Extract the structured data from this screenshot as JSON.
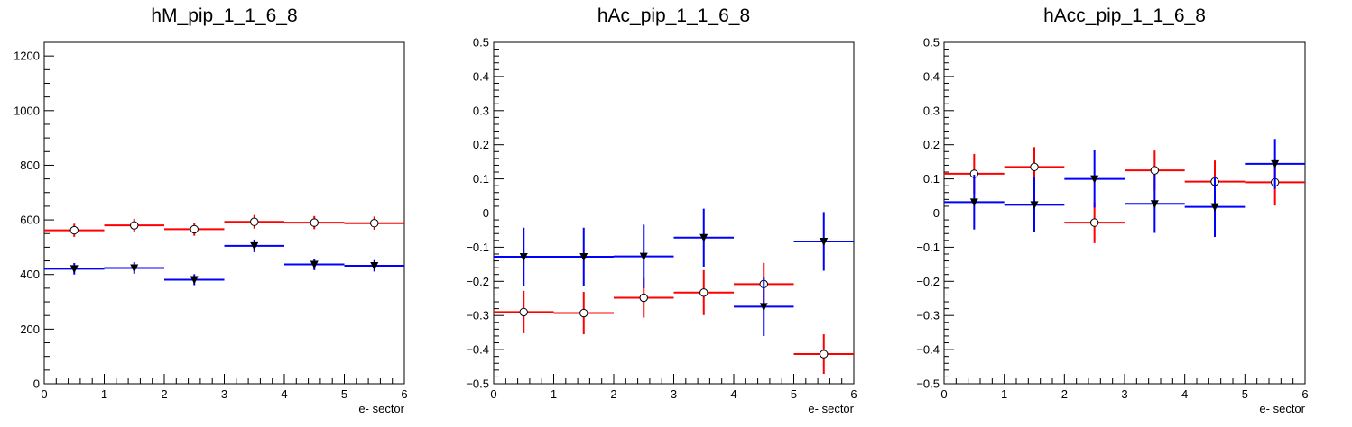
{
  "chart_data": [
    {
      "type": "scatter",
      "title": "hM_pip_1_1_6_8",
      "xlabel": "e- sector",
      "ylabel": "",
      "xlim": [
        0,
        6
      ],
      "ylim": [
        0,
        1250
      ],
      "xticks": [
        "0",
        "1",
        "2",
        "3",
        "4",
        "5",
        "6"
      ],
      "yticks": [
        {
          "v": 0,
          "t": "0"
        },
        {
          "v": 200,
          "t": "200"
        },
        {
          "v": 400,
          "t": "400"
        },
        {
          "v": 600,
          "t": "600"
        },
        {
          "v": 800,
          "t": "800"
        },
        {
          "v": 1000,
          "t": "1000"
        },
        {
          "v": 1200,
          "t": "1200"
        }
      ],
      "yminor": 50,
      "series": [
        {
          "color": "#ff0000",
          "marker": "open-circle",
          "x": [
            0.5,
            1.5,
            2.5,
            3.5,
            4.5,
            5.5
          ],
          "y": [
            562,
            580,
            566,
            593,
            590,
            588
          ],
          "yerr": [
            24,
            24,
            24,
            25,
            24,
            24
          ]
        },
        {
          "color": "#0000ff",
          "marker": "down-triangle",
          "x": [
            0.5,
            1.5,
            2.5,
            3.5,
            4.5,
            5.5
          ],
          "y": [
            421,
            424,
            381,
            505,
            437,
            432
          ],
          "yerr": [
            21,
            21,
            20,
            23,
            21,
            21
          ]
        }
      ]
    },
    {
      "type": "scatter",
      "title": "hAc_pip_1_1_6_8",
      "xlabel": "e- sector",
      "ylabel": "",
      "xlim": [
        0,
        6
      ],
      "ylim": [
        -0.5,
        0.5
      ],
      "xticks": [
        "0",
        "1",
        "2",
        "3",
        "4",
        "5",
        "6"
      ],
      "yticks": [
        {
          "v": -0.5,
          "t": "−0.5"
        },
        {
          "v": -0.4,
          "t": "−0.4"
        },
        {
          "v": -0.3,
          "t": "−0.3"
        },
        {
          "v": -0.2,
          "t": "−0.2"
        },
        {
          "v": -0.1,
          "t": "−0.1"
        },
        {
          "v": 0,
          "t": "0"
        },
        {
          "v": 0.1,
          "t": "0.1"
        },
        {
          "v": 0.2,
          "t": "0.2"
        },
        {
          "v": 0.3,
          "t": "0.3"
        },
        {
          "v": 0.4,
          "t": "0.4"
        },
        {
          "v": 0.5,
          "t": "0.5"
        }
      ],
      "yminor": 0.02,
      "series": [
        {
          "color": "#ff0000",
          "marker": "open-circle",
          "x": [
            0.5,
            1.5,
            2.5,
            3.5,
            4.5,
            5.5
          ],
          "y": [
            -0.29,
            -0.293,
            -0.248,
            -0.233,
            -0.208,
            -0.413
          ],
          "yerr": [
            0.062,
            0.062,
            0.058,
            0.066,
            0.062,
            0.058
          ]
        },
        {
          "color": "#0000ff",
          "marker": "down-triangle",
          "x": [
            0.5,
            1.5,
            2.5,
            3.5,
            4.5,
            5.5
          ],
          "y": [
            -0.128,
            -0.128,
            -0.127,
            -0.072,
            -0.274,
            -0.083
          ],
          "yerr": [
            0.085,
            0.085,
            0.093,
            0.085,
            0.086,
            0.086
          ]
        }
      ]
    },
    {
      "type": "scatter",
      "title": "hAcc_pip_1_1_6_8",
      "xlabel": "e- sector",
      "ylabel": "",
      "xlim": [
        0,
        6
      ],
      "ylim": [
        -0.5,
        0.5
      ],
      "xticks": [
        "0",
        "1",
        "2",
        "3",
        "4",
        "5",
        "6"
      ],
      "yticks": [
        {
          "v": -0.5,
          "t": "−0.5"
        },
        {
          "v": -0.4,
          "t": "−0.4"
        },
        {
          "v": -0.3,
          "t": "−0.3"
        },
        {
          "v": -0.2,
          "t": "−0.2"
        },
        {
          "v": -0.1,
          "t": "−0.1"
        },
        {
          "v": 0,
          "t": "0"
        },
        {
          "v": 0.1,
          "t": "0.1"
        },
        {
          "v": 0.2,
          "t": "0.2"
        },
        {
          "v": 0.3,
          "t": "0.3"
        },
        {
          "v": 0.4,
          "t": "0.4"
        },
        {
          "v": 0.5,
          "t": "0.5"
        }
      ],
      "yminor": 0.02,
      "series": [
        {
          "color": "#ff0000",
          "marker": "open-circle",
          "x": [
            0.5,
            1.5,
            2.5,
            3.5,
            4.5,
            5.5
          ],
          "y": [
            0.115,
            0.135,
            -0.028,
            0.125,
            0.092,
            0.09
          ],
          "yerr": [
            0.058,
            0.058,
            0.06,
            0.058,
            0.062,
            0.068
          ]
        },
        {
          "color": "#0000ff",
          "marker": "down-triangle",
          "x": [
            0.5,
            1.5,
            2.5,
            3.5,
            4.5,
            5.5
          ],
          "y": [
            0.032,
            0.024,
            0.1,
            0.027,
            0.018,
            0.144
          ],
          "yerr": [
            0.08,
            0.08,
            0.084,
            0.085,
            0.088,
            0.073
          ]
        }
      ]
    }
  ]
}
